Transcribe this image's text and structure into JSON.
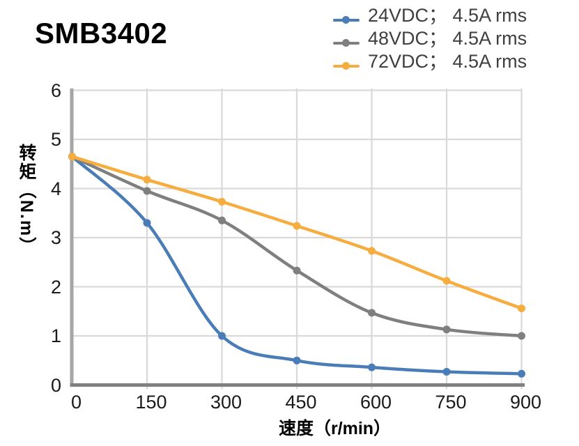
{
  "chart_data": {
    "type": "line",
    "title": "SMB3402",
    "xlabel": "速度（r/min）",
    "ylabel": "转矩（N.m）",
    "x": [
      0,
      150,
      300,
      450,
      600,
      750,
      900
    ],
    "x_tick_labels": [
      "0",
      "150",
      "300",
      "450",
      "600",
      "750",
      "900"
    ],
    "y_tick_labels": [
      "0",
      "1",
      "2",
      "3",
      "4",
      "5",
      "6"
    ],
    "xlim": [
      0,
      900
    ],
    "ylim": [
      0,
      6
    ],
    "grid": true,
    "smooth_lines": true,
    "marker": "circle",
    "legend_position": "top-right",
    "series": [
      {
        "id": "24vdc",
        "name": "24VDC； 4.5A rms",
        "color": "#4A7CB8",
        "values": [
          4.65,
          3.3,
          1.0,
          0.5,
          0.36,
          0.27,
          0.23
        ]
      },
      {
        "id": "48vdc",
        "name": "48VDC； 4.5A rms",
        "color": "#7F7F7F",
        "values": [
          4.65,
          3.95,
          3.35,
          2.33,
          1.47,
          1.13,
          1.0
        ]
      },
      {
        "id": "72vdc",
        "name": "72VDC； 4.5A rms",
        "color": "#F5AD40",
        "values": [
          4.65,
          4.18,
          3.73,
          3.24,
          2.73,
          2.12,
          1.56
        ]
      }
    ],
    "style_colors": {
      "grid": "#D9D9D9",
      "y_axis_line": "#A6A6A6",
      "x_axis_line": "#808080",
      "tick_text": "#1A1A1A",
      "legend_text": "#3F3F3F",
      "title_text": "#000000"
    }
  }
}
